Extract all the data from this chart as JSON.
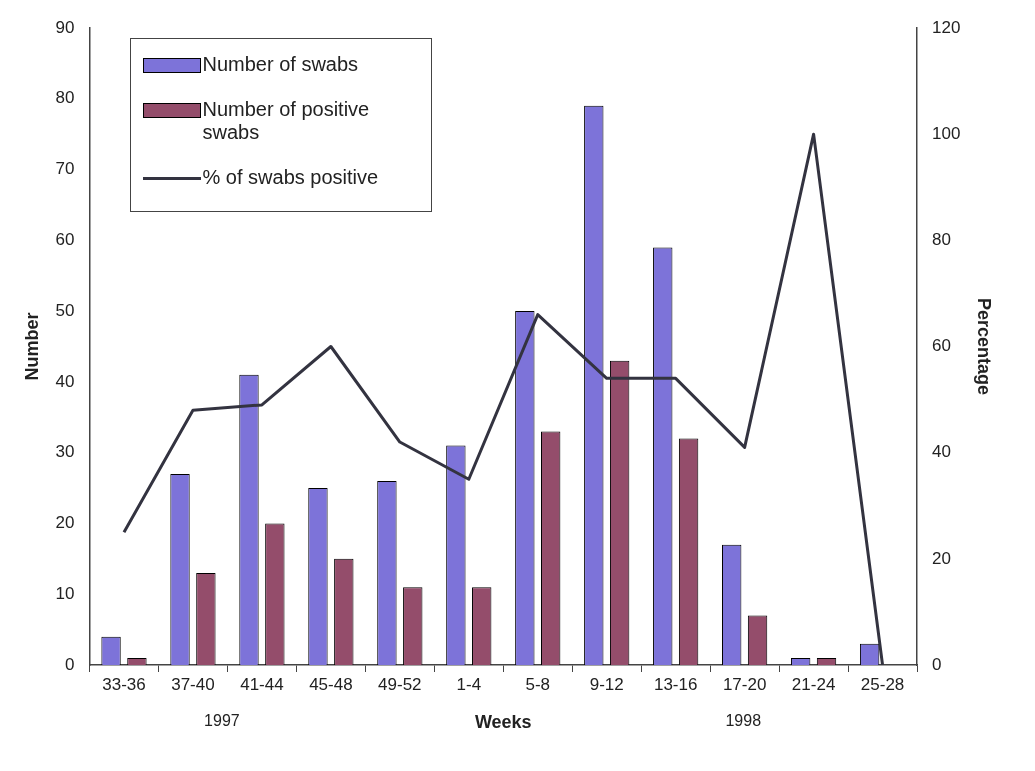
{
  "chart_data": {
    "type": "bar",
    "xlabel": "Weeks",
    "ylabel": "Number",
    "y2label": "Percentage",
    "categories": [
      "33-36",
      "37-40",
      "41-44",
      "45-48",
      "49-52",
      "1-4",
      "5-8",
      "9-12",
      "13-16",
      "17-20",
      "21-24",
      "25-28"
    ],
    "series": [
      {
        "name": "Number of swabs",
        "color": "#7d73d9",
        "values": [
          4,
          27,
          41,
          25,
          26,
          31,
          50,
          79,
          59,
          17,
          1,
          3
        ]
      },
      {
        "name": "Number of positive swabs",
        "color": "#944d6b",
        "values": [
          1,
          13,
          20,
          15,
          11,
          11,
          33,
          43,
          32,
          7,
          1,
          0
        ]
      },
      {
        "name": "% of swabs positive",
        "type": "line",
        "axis": "y2",
        "color": "#333340",
        "values": [
          25,
          48,
          49,
          60,
          42,
          35,
          66,
          54,
          54,
          41,
          100,
          0
        ]
      }
    ],
    "ylim": [
      0,
      90
    ],
    "yticks": [
      0,
      10,
      20,
      30,
      40,
      50,
      60,
      70,
      80,
      90
    ],
    "y2lim": [
      0,
      120
    ],
    "y2ticks": [
      0,
      20,
      40,
      60,
      80,
      100,
      120
    ],
    "legend": "top left",
    "marker": "none",
    "annotations": [
      "1997",
      "1998"
    ]
  }
}
